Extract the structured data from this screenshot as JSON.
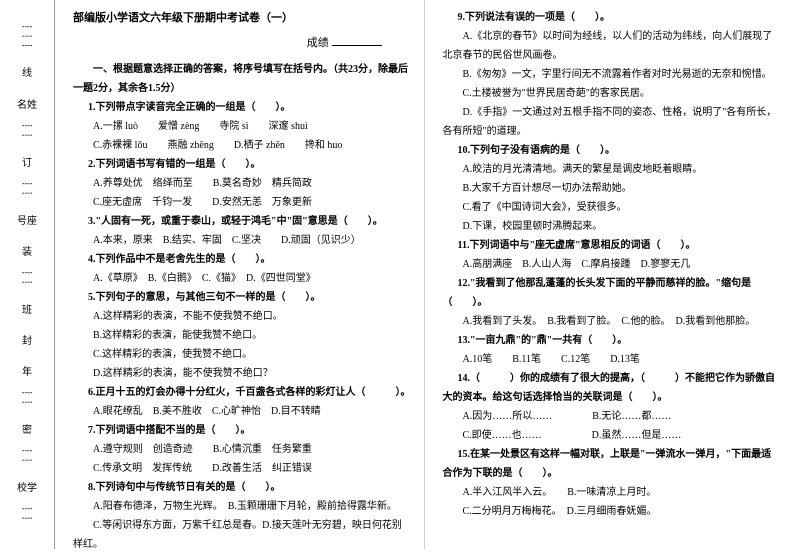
{
  "header": {
    "title": "部编版小学语文六年级下册期中考试卷（一）",
    "score_label": "成绩"
  },
  "binding": {
    "labels": [
      "校学",
      "年",
      "班",
      "号座",
      "名姓"
    ],
    "marks": [
      "密",
      "封",
      "装",
      "订",
      "线"
    ]
  },
  "section1": {
    "heading": "一、根据题意选择正确的答案，将序号填写在括号内。（共23分，除最后一题2分，其余各1.5分）",
    "q1": {
      "stem": "1.下列带点字读音完全正确的一组是（　　）。",
      "a": "A.一摞 luò　　爱憎 zèng　　寺院 sì　　深邃 shuì",
      "b": "C.赤裸裸 lǒu　　燕融 zhēng　　D.栖子 zhēn　　搀和 huo"
    },
    "q2": {
      "stem": "2.下列词语书写有错的一组是（　　）。",
      "a": "A.养尊处优　络绎而至　　B.莫名奇妙　精兵简政",
      "b": "C.座无虚席　千钧一发　　D.安然无恙　万象更新"
    },
    "q3": {
      "stem": "3.\"人固有一死，或重于泰山，或轻于鸿毛\"中\"固\"意思是（　　）。",
      "a": "A.本来，原来　B.结实、牢固　C.坚决　　D.顽固（见识少）"
    },
    "q4": {
      "stem": "4.下列作品中不是老舍先生的是（　　）。",
      "a": "A.《草原》　B.《白鹅》　C.《猫》　D.《四世同堂》"
    },
    "q5": {
      "stem": "5.下列句子的意思，与其他三句不一样的是（　　）。",
      "a": "A.这样精彩的表演，不能不使我赞不绝口。",
      "b": "B.这样精彩的表演，能使我赞不绝口。",
      "c": "C.这样精彩的表演，使我赞不绝口。",
      "d": "D.这样精彩的表演，能不使我赞不绝口？"
    },
    "q6": {
      "stem": "6.正月十五的灯会办得十分红火，千百盏各式各样的彩灯让人（　　　）。",
      "a": "A.眼花缭乱　B.美不胜收　C.心旷神怡　D.目不转睛"
    },
    "q7": {
      "stem": "7.下列词语中搭配不当的是（　　）。",
      "a": "A.遵守规则　创造奇迹　　B.心情沉重　任务繁重",
      "b": "C.传承文明　发挥传统　　D.改善生活　纠正错误"
    },
    "q8": {
      "stem": "8.下列诗句中与传统节日有关的是（　　）。",
      "a": "A.阳春布德泽，万物生光辉。　B.玉颗珊珊下月轮，殿前拾得露华新。",
      "b": "C.等闲识得东方面，万紫千红总是春。D.接天莲叶无穷碧，映日何花别样红。"
    }
  },
  "col2": {
    "q9": {
      "stem": "9.下列说法有误的一项是（　　）。",
      "a": "A.《北京的春节》以时间为经线，以人们的活动为纬线，向人们展现了北京春节的民俗世风画卷。",
      "b": "B.《匆匆》一文，字里行间无不流露着作者对时光易逝的无奈和惋惜。",
      "c": "C.土楼被誉为\"世界民居奇葩\"的客家民居。",
      "d": "D.《手指》一文通过对五根手指不同的姿态、性格，说明了\"各有所长，各有所短\"的道理。"
    },
    "q10": {
      "stem": "10.下列句子没有语病的是（　　）。",
      "a": "A.皎洁的月光清清地。满天的繁星是调皮地眨着眼睛。",
      "b": "B.大家千方百计想尽一切办法帮助她。",
      "c": "C.看了《中国诗词大会》，受获很多。",
      "d": "D.下课，校园里顿时沸腾起来。"
    },
    "q11": {
      "stem": "11.下列词语中与\"座无虚席\"意思相反的词语（　　）。",
      "a": "A.高朋满座　B.人山人海　C.摩肩接踵　D.寥寥无几"
    },
    "q12": {
      "stem": "12.\"我看到了他那乱蓬蓬的长头发下面的平静而慈祥的脸。\"缩句是（　　）。",
      "a": "A.我看到了头发。　B.我看到了脸。　C.他的脸。　D.我看到他那脸。"
    },
    "q13": {
      "stem": "13.\"一亩九鼎\"的\"鼎\"一共有（　　）。",
      "a": "A.10笔　　B.11笔　　C.12笔　　D.13笔"
    },
    "q14": {
      "stem": "14.（　　　）你的成绩有了很大的提高，（　　　）不能把它作为骄傲自大的资本。给这句话选择恰当的关联词是（　　）。",
      "a": "A.因为……所以……　　　　B.无论……都……",
      "b": "C.即使……也……　　　　　D.虽然……但是……"
    },
    "q15": {
      "stem": "15.在某一处景区有这样一幅对联，上联是\"一弹流水一弹月，\"下面最适合作为下联的是（　　）。",
      "a": "A.半入江风半入云。　　B.一味清凉上月时。",
      "b": "C.二分明月万梅梅花。　D.三月细雨春妩媚。"
    }
  }
}
